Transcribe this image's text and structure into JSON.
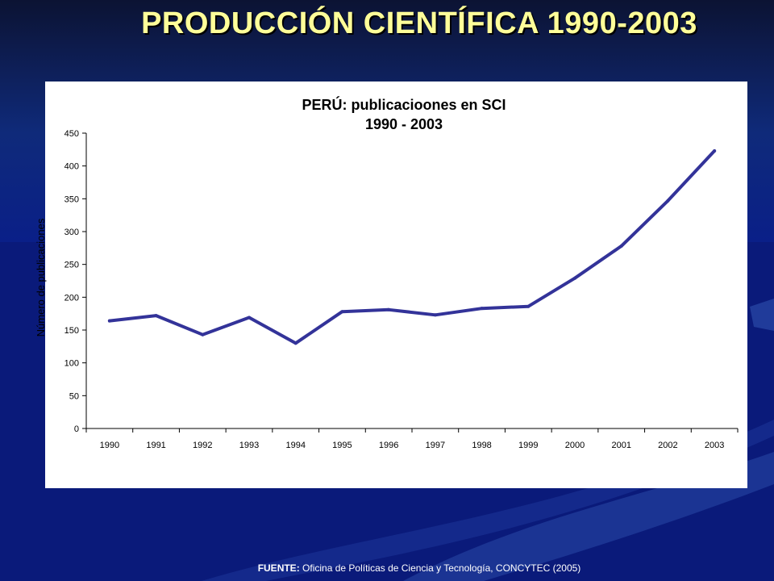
{
  "slide": {
    "title": "PRODUCCIÓN CIENTÍFICA 1990-2003",
    "source_label": "FUENTE:",
    "source_text": " Oficina de Políticas de Ciencia y Tecnología, CONCYTEC  (2005)"
  },
  "colors": {
    "background": "#0a1a6a",
    "title_text": "#ffff99",
    "series_line": "#333399"
  },
  "chart_data": {
    "type": "line",
    "title_line1": "PERÚ: publicacioones  en SCI",
    "title_line2": "1990 - 2003",
    "xlabel": "",
    "ylabel": "Número de publicaciones",
    "categories": [
      "1990",
      "1991",
      "1992",
      "1993",
      "1994",
      "1995",
      "1996",
      "1997",
      "1998",
      "1999",
      "2000",
      "2001",
      "2002",
      "2003"
    ],
    "values": [
      164,
      172,
      143,
      169,
      130,
      178,
      181,
      173,
      183,
      186,
      229,
      278,
      347,
      423
    ],
    "ylim": [
      0,
      450
    ],
    "yticks": [
      0,
      50,
      100,
      150,
      200,
      250,
      300,
      350,
      400,
      450
    ],
    "grid": false,
    "legend": "none"
  }
}
